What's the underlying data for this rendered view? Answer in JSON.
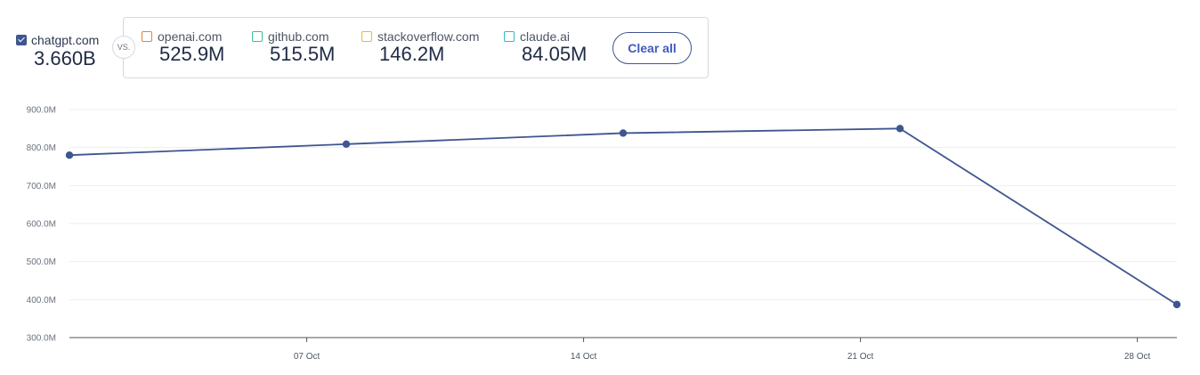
{
  "primary": {
    "name": "chatgpt.com",
    "value": "3.660B",
    "color": "#3f5590",
    "checked": true
  },
  "vs_label": "VS.",
  "comparisons": [
    {
      "name": "openai.com",
      "value": "525.9M",
      "color": "#e8823a"
    },
    {
      "name": "github.com",
      "value": "515.5M",
      "color": "#3fbf8f"
    },
    {
      "name": "stackoverflow.com",
      "value": "146.2M",
      "color": "#f2b530"
    },
    {
      "name": "claude.ai",
      "value": "84.05M",
      "color": "#36b6c9"
    }
  ],
  "clear_all_label": "Clear all",
  "chart_data": {
    "type": "line",
    "series": [
      {
        "name": "chatgpt.com",
        "color": "#3f5590",
        "points": [
          {
            "x": "2024-09-30",
            "y": 780000000
          },
          {
            "x": "2024-10-07",
            "y": 809000000
          },
          {
            "x": "2024-10-14",
            "y": 838000000
          },
          {
            "x": "2024-10-21",
            "y": 850000000
          },
          {
            "x": "2024-10-28",
            "y": 387000000
          }
        ]
      }
    ],
    "x_range": [
      "2024-09-30",
      "2024-10-28"
    ],
    "x_ticks": [
      {
        "x": "2024-10-06",
        "label": "07 Oct"
      },
      {
        "x": "2024-10-13",
        "label": "14 Oct"
      },
      {
        "x": "2024-10-20",
        "label": "21 Oct"
      },
      {
        "x": "2024-10-27",
        "label": "28 Oct"
      }
    ],
    "ylim": [
      300000000,
      900000000
    ],
    "y_ticks": [
      {
        "value": 900000000,
        "label": "900.0M"
      },
      {
        "value": 800000000,
        "label": "800.0M"
      },
      {
        "value": 700000000,
        "label": "700.0M"
      },
      {
        "value": 600000000,
        "label": "600.0M"
      },
      {
        "value": 500000000,
        "label": "500.0M"
      },
      {
        "value": 400000000,
        "label": "400.0M"
      },
      {
        "value": 300000000,
        "label": "300.0M"
      }
    ],
    "grid": true,
    "grid_color": "#eeeeee",
    "axis_color": "#555555"
  }
}
